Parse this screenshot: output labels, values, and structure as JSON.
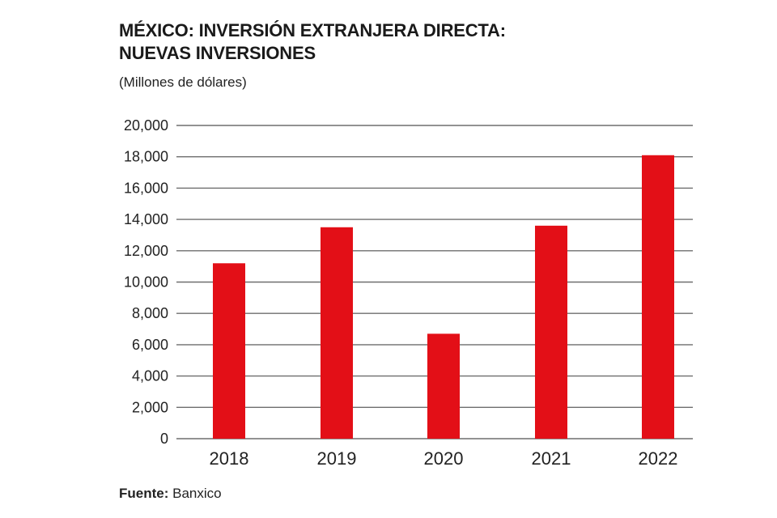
{
  "chart_data": {
    "type": "bar",
    "title_line1": "MÉXICO: INVERSIÓN EXTRANJERA DIRECTA:",
    "title_line2": "NUEVAS INVERSIONES",
    "subtitle": "(Millones de dólares)",
    "categories": [
      "2018",
      "2019",
      "2020",
      "2021",
      "2022"
    ],
    "values": [
      11200,
      13500,
      6700,
      13600,
      18100
    ],
    "ylim": [
      0,
      20000
    ],
    "yticks": [
      0,
      2000,
      4000,
      6000,
      8000,
      10000,
      12000,
      14000,
      16000,
      18000,
      20000
    ],
    "ytick_labels": [
      "0",
      "2,000",
      "4,000",
      "6,000",
      "8,000",
      "10,000",
      "12,000",
      "14,000",
      "16,000",
      "18,000",
      "20,000"
    ],
    "grid": true,
    "bar_color": "#e30f17",
    "xlabel": "",
    "ylabel": ""
  },
  "source": {
    "label": "Fuente:",
    "value": "Banxico"
  }
}
